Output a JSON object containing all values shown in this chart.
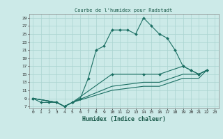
{
  "title": "Courbe de l'humidex pour Radstadt",
  "xlabel": "Humidex (Indice chaleur)",
  "bg_color": "#cceae8",
  "line_color": "#1a6e62",
  "grid_color": "#aad4d0",
  "xlim": [
    -0.5,
    23.5
  ],
  "ylim": [
    6.5,
    30
  ],
  "yticks": [
    7,
    9,
    11,
    13,
    15,
    17,
    19,
    21,
    23,
    25,
    27,
    29
  ],
  "xticks": [
    0,
    1,
    2,
    3,
    4,
    5,
    6,
    7,
    8,
    9,
    10,
    11,
    12,
    13,
    14,
    15,
    16,
    17,
    18,
    19,
    20,
    21,
    22,
    23
  ],
  "series": [
    {
      "x": [
        0,
        1,
        2,
        3,
        4,
        5,
        6,
        7,
        8,
        9,
        10,
        11,
        12,
        13,
        14,
        15,
        16,
        17,
        18,
        19,
        20,
        21,
        22
      ],
      "y": [
        9,
        8,
        8,
        8,
        7,
        8,
        9,
        14,
        21,
        22,
        26,
        26,
        26,
        25,
        29,
        27,
        25,
        24,
        21,
        17,
        16,
        15,
        16
      ],
      "has_markers": true
    },
    {
      "x": [
        0,
        3,
        4,
        5,
        10,
        14,
        16,
        19,
        20,
        21,
        22
      ],
      "y": [
        9,
        8,
        7,
        8,
        15,
        15,
        15,
        17,
        16,
        15,
        16
      ],
      "has_markers": true
    },
    {
      "x": [
        0,
        3,
        4,
        5,
        10,
        14,
        16,
        19,
        20,
        21,
        22
      ],
      "y": [
        9,
        8,
        7,
        8,
        12,
        13,
        13,
        15,
        15,
        15,
        16
      ],
      "has_markers": false
    },
    {
      "x": [
        0,
        3,
        4,
        5,
        10,
        14,
        16,
        19,
        20,
        21,
        22
      ],
      "y": [
        9,
        8,
        7,
        8,
        11,
        12,
        12,
        14,
        14,
        14,
        16
      ],
      "has_markers": false
    }
  ]
}
